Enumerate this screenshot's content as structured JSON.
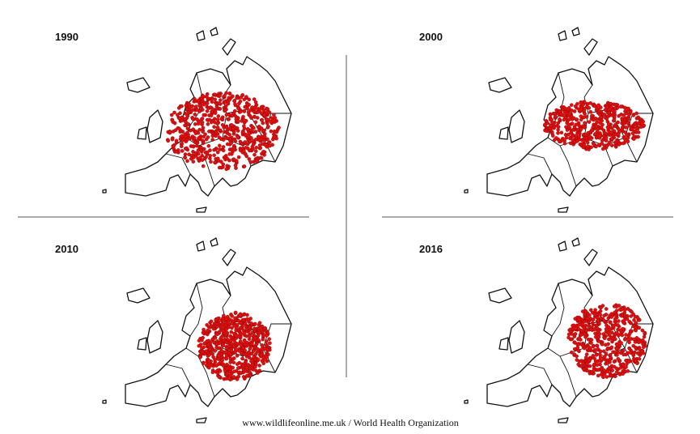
{
  "panels": [
    {
      "label": "1990"
    },
    {
      "label": "2000"
    },
    {
      "label": "2010"
    },
    {
      "label": "2016"
    }
  ],
  "source": "www.wildlifeonline.me.uk / World Health Organization"
}
